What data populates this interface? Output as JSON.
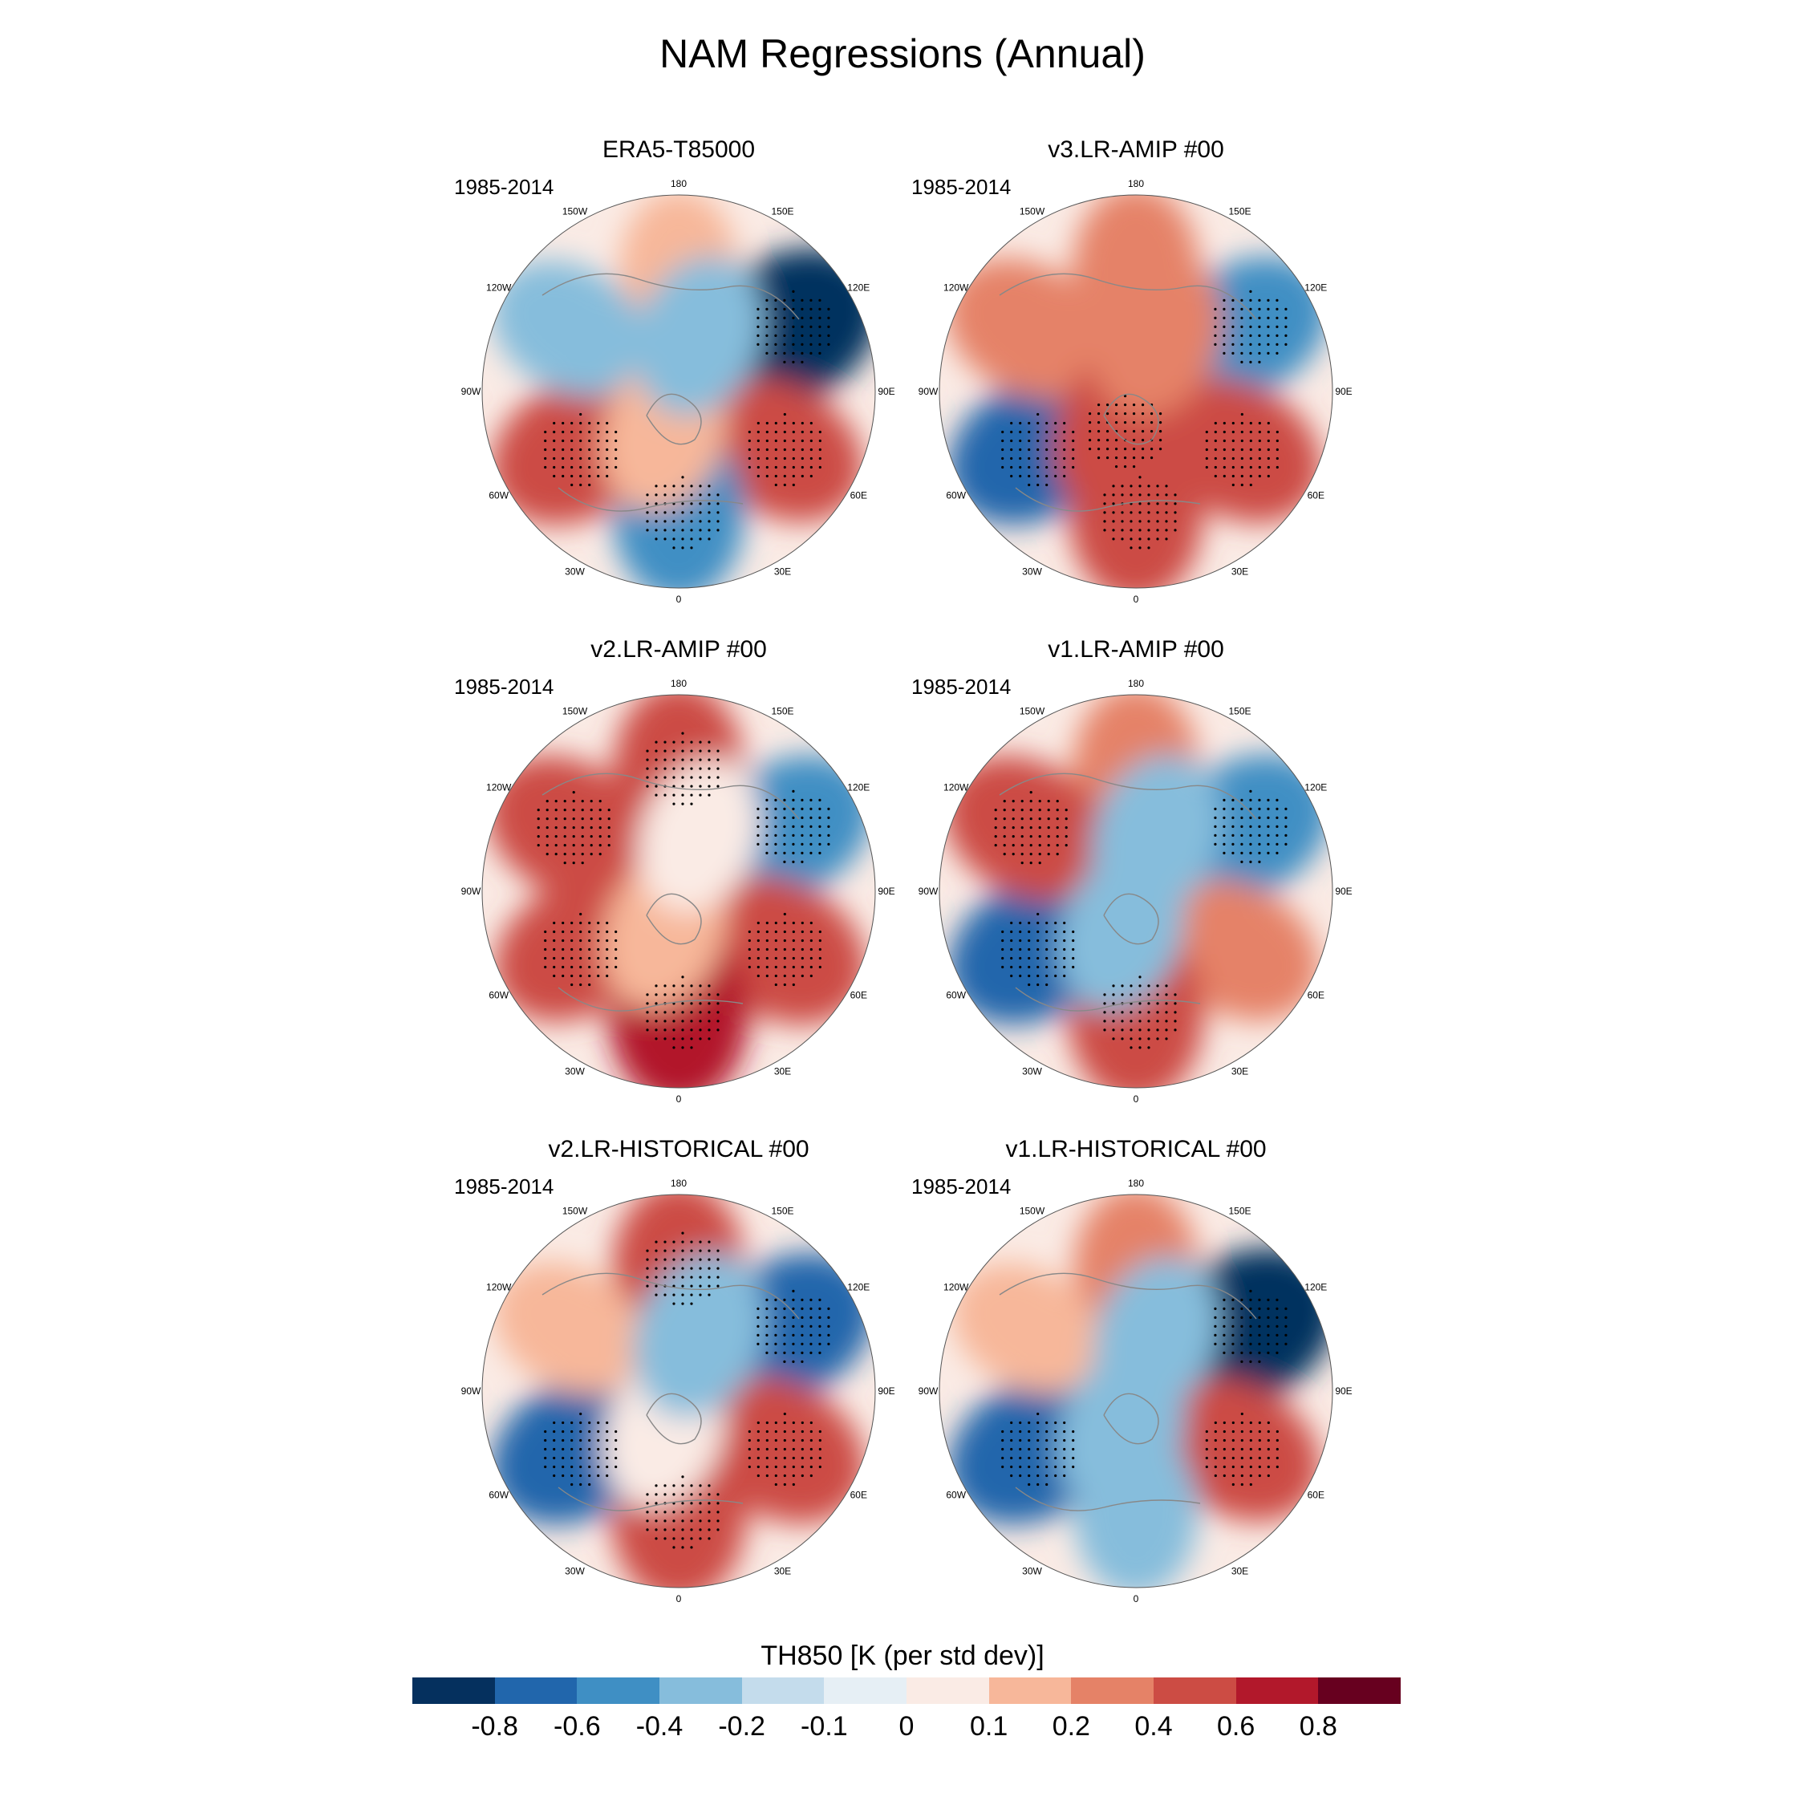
{
  "title": "NAM Regressions (Annual)",
  "panels": [
    {
      "title": "ERA5-T85000",
      "period": "1985-2014",
      "pattern": [
        0.15,
        -0.85,
        0.45,
        -0.5,
        0.6,
        -0.3,
        0.2,
        -0.25
      ]
    },
    {
      "title": "v3.LR-AMIP  #00",
      "period": "1985-2014",
      "pattern": [
        0.35,
        -0.45,
        0.5,
        0.55,
        -0.6,
        0.4,
        0.45,
        0.3
      ]
    },
    {
      "title": "v2.LR-AMIP  #00",
      "period": "1985-2014",
      "pattern": [
        0.45,
        -0.5,
        0.6,
        0.7,
        0.45,
        0.5,
        0.15,
        0.1
      ]
    },
    {
      "title": "v1.LR-AMIP  #00",
      "period": "1985-2014",
      "pattern": [
        0.35,
        -0.55,
        0.4,
        0.6,
        -0.6,
        0.5,
        -0.2,
        -0.3
      ]
    },
    {
      "title": "v2.LR-HISTORICAL  #00",
      "period": "1985-2014",
      "pattern": [
        0.5,
        -0.6,
        0.55,
        0.6,
        -0.6,
        0.2,
        0.1,
        -0.35
      ]
    },
    {
      "title": "v1.LR-HISTORICAL  #00",
      "period": "1985-2014",
      "pattern": [
        0.3,
        -0.85,
        0.45,
        -0.3,
        -0.6,
        0.15,
        -0.25,
        -0.2
      ]
    }
  ],
  "lon_labels": [
    "180",
    "150E",
    "120E",
    "90E",
    "60E",
    "30E",
    "0",
    "30W",
    "60W",
    "90W",
    "120W",
    "150W"
  ],
  "colorbar": {
    "title": "TH850 [K (per std dev)]",
    "levels": [
      "-0.8",
      "-0.6",
      "-0.4",
      "-0.2",
      "-0.1",
      "0",
      "0.1",
      "0.2",
      "0.4",
      "0.6",
      "0.8"
    ],
    "colors": [
      "#05305e",
      "#2166ac",
      "#3f8fc4",
      "#86bddc",
      "#c4dcec",
      "#e6eff5",
      "#faebe5",
      "#f7b79a",
      "#e58267",
      "#cc4c44",
      "#b2182b",
      "#67001f"
    ]
  }
}
